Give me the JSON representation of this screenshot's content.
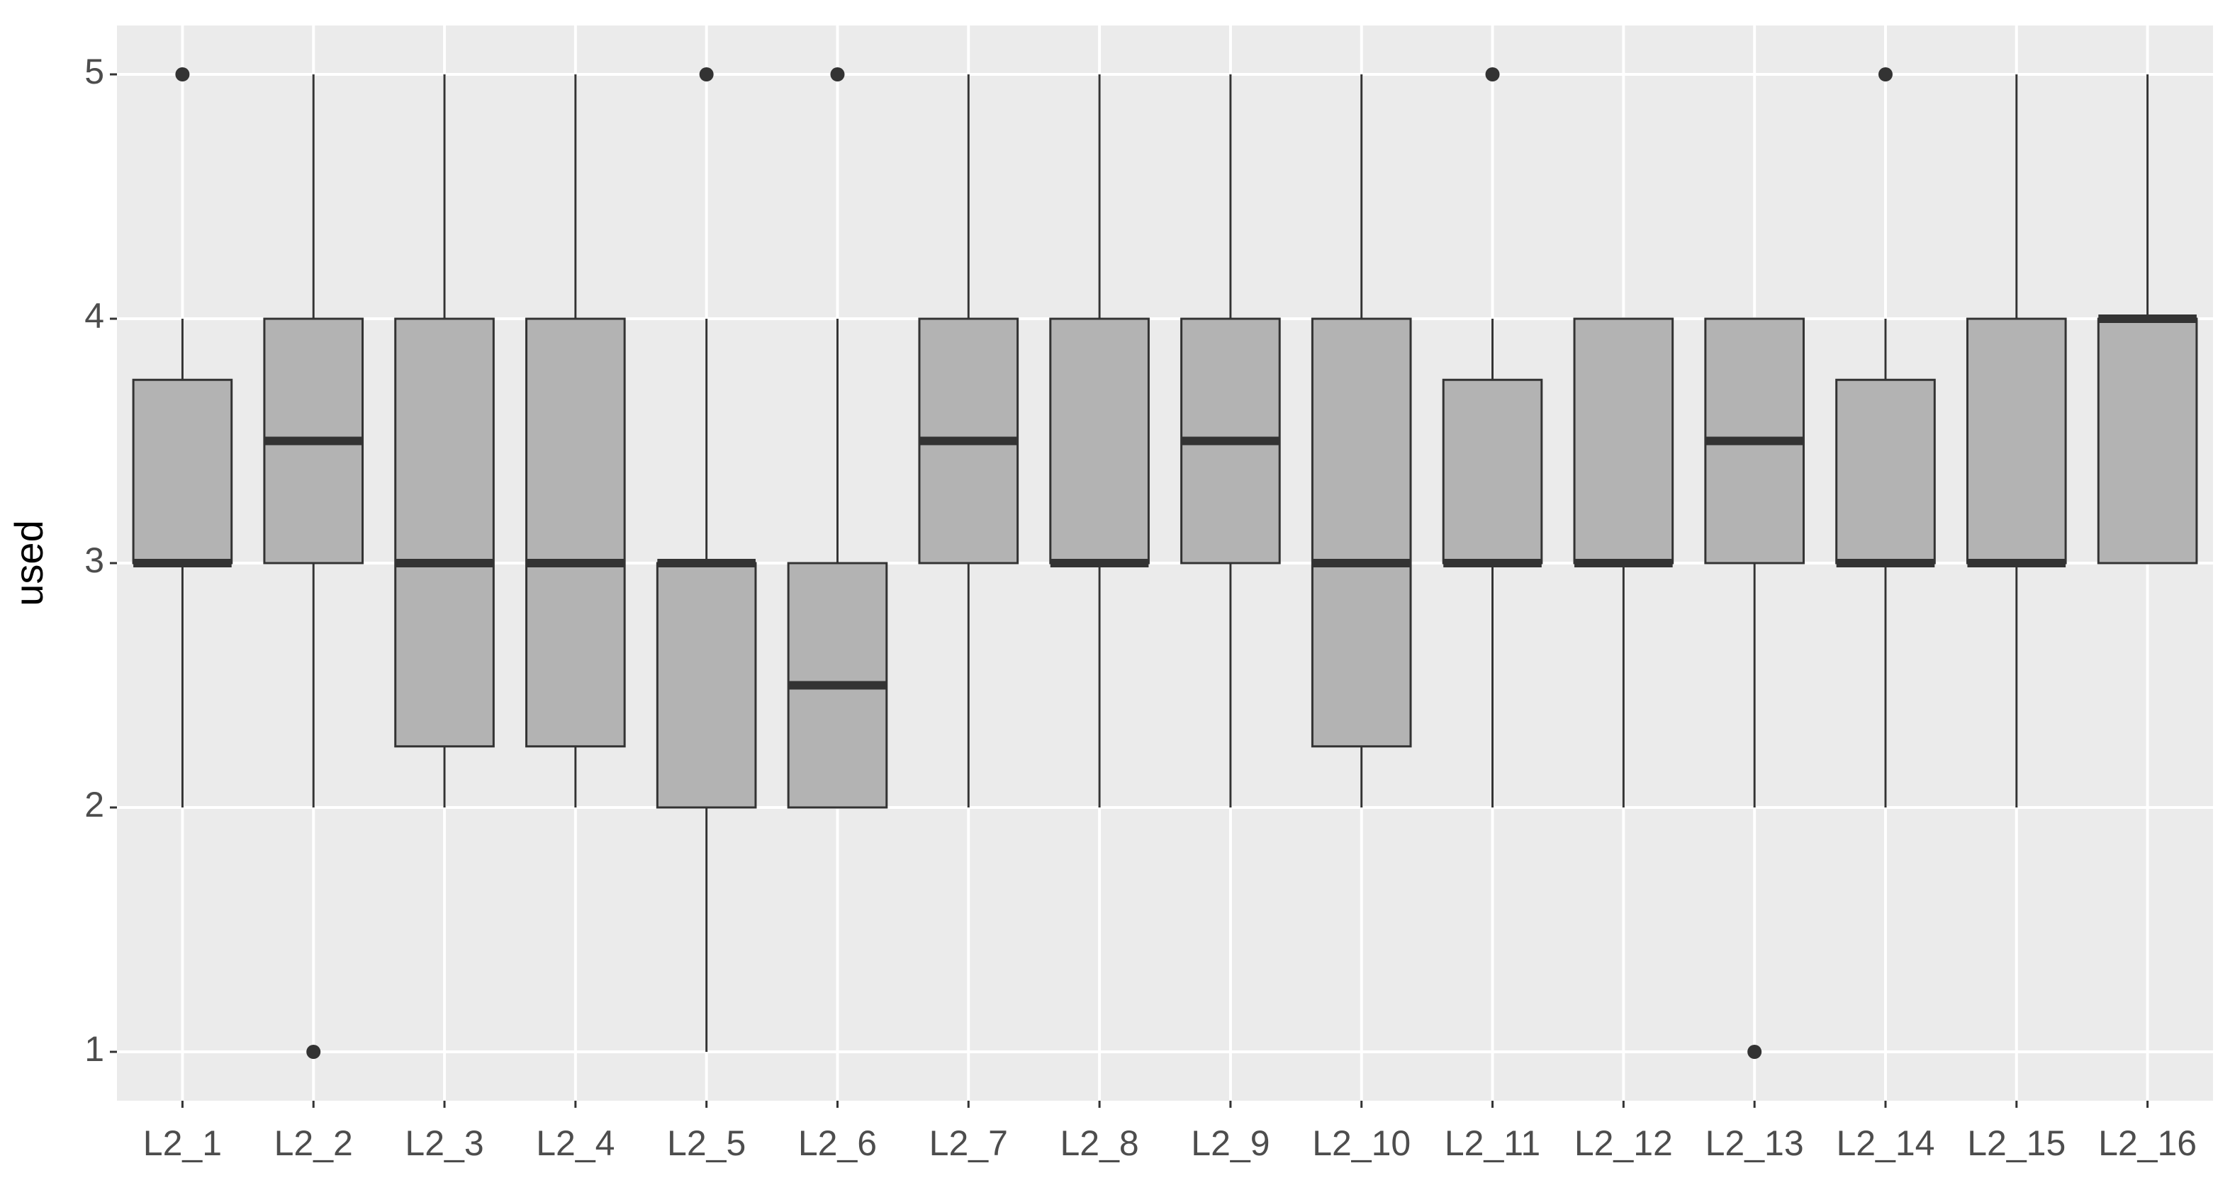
{
  "chart_data": {
    "type": "boxplot",
    "y_label": "used",
    "categories": [
      "L2_1",
      "L2_2",
      "L2_3",
      "L2_4",
      "L2_5",
      "L2_6",
      "L2_7",
      "L2_8",
      "L2_9",
      "L2_10",
      "L2_11",
      "L2_12",
      "L2_13",
      "L2_14",
      "L2_15",
      "L2_16"
    ],
    "boxes": [
      {
        "low": 2,
        "q1": 3,
        "median": 3,
        "q3": 3.75,
        "high": 4,
        "outliers": [
          5
        ]
      },
      {
        "low": 2,
        "q1": 3,
        "median": 3.5,
        "q3": 4,
        "high": 5,
        "outliers": [
          1
        ]
      },
      {
        "low": 2,
        "q1": 2.25,
        "median": 3,
        "q3": 4,
        "high": 5,
        "outliers": []
      },
      {
        "low": 2,
        "q1": 2.25,
        "median": 3,
        "q3": 4,
        "high": 5,
        "outliers": []
      },
      {
        "low": 1,
        "q1": 2,
        "median": 3,
        "q3": 3,
        "high": 4,
        "outliers": [
          5
        ]
      },
      {
        "low": 2,
        "q1": 2,
        "median": 2.5,
        "q3": 3,
        "high": 4,
        "outliers": [
          5
        ]
      },
      {
        "low": 2,
        "q1": 3,
        "median": 3.5,
        "q3": 4,
        "high": 5,
        "outliers": []
      },
      {
        "low": 2,
        "q1": 3,
        "median": 3,
        "q3": 4,
        "high": 5,
        "outliers": []
      },
      {
        "low": 2,
        "q1": 3,
        "median": 3.5,
        "q3": 4,
        "high": 5,
        "outliers": []
      },
      {
        "low": 2,
        "q1": 2.25,
        "median": 3,
        "q3": 4,
        "high": 5,
        "outliers": []
      },
      {
        "low": 2,
        "q1": 3,
        "median": 3,
        "q3": 3.75,
        "high": 4,
        "outliers": [
          5
        ]
      },
      {
        "low": 2,
        "q1": 3,
        "median": 3,
        "q3": 4,
        "high": 4,
        "outliers": []
      },
      {
        "low": 2,
        "q1": 3,
        "median": 3.5,
        "q3": 4,
        "high": 4,
        "outliers": [
          1
        ]
      },
      {
        "low": 2,
        "q1": 3,
        "median": 3,
        "q3": 3.75,
        "high": 4,
        "outliers": [
          5
        ]
      },
      {
        "low": 2,
        "q1": 3,
        "median": 3,
        "q3": 4,
        "high": 5,
        "outliers": []
      },
      {
        "low": 3,
        "q1": 3,
        "median": 4,
        "q3": 4,
        "high": 5,
        "outliers": []
      }
    ],
    "fill": "#b3b3b3",
    "line_color": "#333333",
    "ylim": [
      0.8,
      5.2
    ],
    "yticks": [
      1,
      2,
      3,
      4,
      5
    ],
    "grid": true
  }
}
